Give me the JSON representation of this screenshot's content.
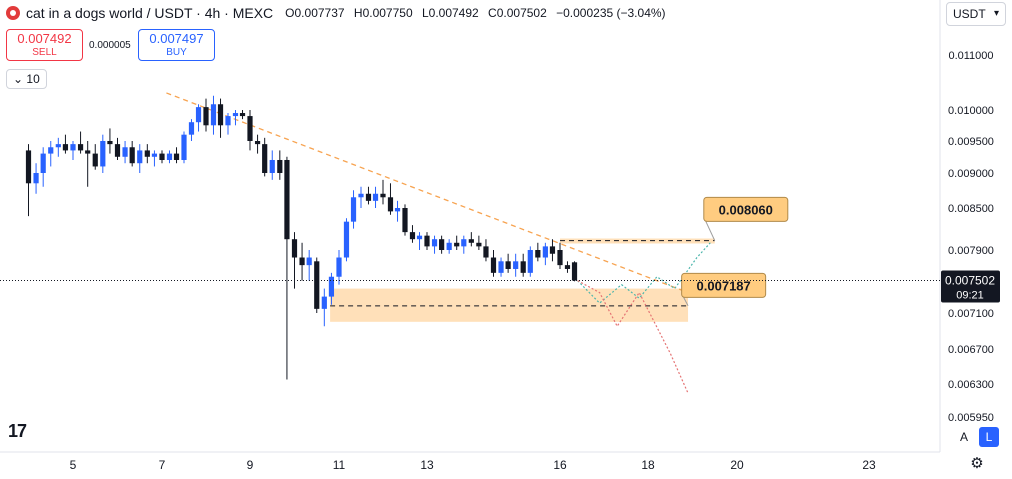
{
  "header": {
    "symbol": "cat in a dogs world / USDT · 4h · MEXC",
    "open": "O0.007737",
    "high": "H0.007750",
    "low": "L0.007492",
    "close": "C0.007502",
    "change": "−0.000235 (−3.04%)"
  },
  "trade": {
    "sell_price": "0.007492",
    "sell_label": "SELL",
    "spread": "0.000005",
    "buy_price": "0.007497",
    "buy_label": "BUY"
  },
  "indicator_count": "10",
  "currency": "USDT",
  "scale_buttons": {
    "auto": "A",
    "log": "L"
  },
  "colors": {
    "up": "#2962ff",
    "down": "#131722",
    "trend": "#f7a350",
    "zone": "#ffd8a8",
    "callout": "#ffcc80"
  },
  "chart_data": {
    "type": "candlestick",
    "timeframe": "4h",
    "y_ticks": [
      "0.011000",
      "0.010000",
      "0.009500",
      "0.009000",
      "0.008500",
      "0.007900",
      "0.007100",
      "0.006700",
      "0.006300",
      "0.005950"
    ],
    "x_ticks": [
      "5",
      "7",
      "9",
      "11",
      "13",
      "16",
      "18",
      "20",
      "23"
    ],
    "last_price": {
      "value": "0.007502",
      "countdown": "09:21"
    },
    "ohlc": [
      {
        "x": 4.0,
        "o": 0.00935,
        "h": 0.00945,
        "l": 0.00838,
        "c": 0.00885
      },
      {
        "x": 4.17,
        "o": 0.00885,
        "h": 0.00915,
        "l": 0.0087,
        "c": 0.009
      },
      {
        "x": 4.33,
        "o": 0.009,
        "h": 0.0094,
        "l": 0.0088,
        "c": 0.0093
      },
      {
        "x": 4.5,
        "o": 0.0093,
        "h": 0.0095,
        "l": 0.0091,
        "c": 0.0094
      },
      {
        "x": 4.67,
        "o": 0.0094,
        "h": 0.00955,
        "l": 0.00925,
        "c": 0.00945
      },
      {
        "x": 4.83,
        "o": 0.00945,
        "h": 0.0096,
        "l": 0.0093,
        "c": 0.00935
      },
      {
        "x": 5.0,
        "o": 0.00935,
        "h": 0.0095,
        "l": 0.0092,
        "c": 0.00945
      },
      {
        "x": 5.17,
        "o": 0.00945,
        "h": 0.00965,
        "l": 0.0093,
        "c": 0.00935
      },
      {
        "x": 5.33,
        "o": 0.00935,
        "h": 0.0095,
        "l": 0.0088,
        "c": 0.0093
      },
      {
        "x": 5.5,
        "o": 0.0093,
        "h": 0.00945,
        "l": 0.00905,
        "c": 0.0091
      },
      {
        "x": 5.67,
        "o": 0.0091,
        "h": 0.0096,
        "l": 0.009,
        "c": 0.0095
      },
      {
        "x": 5.83,
        "o": 0.0095,
        "h": 0.0097,
        "l": 0.0093,
        "c": 0.00945
      },
      {
        "x": 6.0,
        "o": 0.00945,
        "h": 0.00955,
        "l": 0.0092,
        "c": 0.00925
      },
      {
        "x": 6.17,
        "o": 0.00925,
        "h": 0.0095,
        "l": 0.00915,
        "c": 0.0094
      },
      {
        "x": 6.33,
        "o": 0.0094,
        "h": 0.0095,
        "l": 0.0091,
        "c": 0.00915
      },
      {
        "x": 6.5,
        "o": 0.00915,
        "h": 0.00945,
        "l": 0.009,
        "c": 0.00935
      },
      {
        "x": 6.67,
        "o": 0.00935,
        "h": 0.00945,
        "l": 0.00915,
        "c": 0.00925
      },
      {
        "x": 6.83,
        "o": 0.00925,
        "h": 0.00935,
        "l": 0.0091,
        "c": 0.0093
      },
      {
        "x": 7.0,
        "o": 0.0093,
        "h": 0.00935,
        "l": 0.00915,
        "c": 0.0092
      },
      {
        "x": 7.17,
        "o": 0.0092,
        "h": 0.00935,
        "l": 0.00915,
        "c": 0.0093
      },
      {
        "x": 7.33,
        "o": 0.0093,
        "h": 0.0094,
        "l": 0.00915,
        "c": 0.0092
      },
      {
        "x": 7.5,
        "o": 0.0092,
        "h": 0.00965,
        "l": 0.00915,
        "c": 0.0096
      },
      {
        "x": 7.67,
        "o": 0.0096,
        "h": 0.00985,
        "l": 0.0095,
        "c": 0.0098
      },
      {
        "x": 7.83,
        "o": 0.0098,
        "h": 0.0101,
        "l": 0.00965,
        "c": 0.01005
      },
      {
        "x": 8.0,
        "o": 0.01005,
        "h": 0.0102,
        "l": 0.00965,
        "c": 0.00975
      },
      {
        "x": 8.17,
        "o": 0.00975,
        "h": 0.01025,
        "l": 0.0096,
        "c": 0.0101
      },
      {
        "x": 8.33,
        "o": 0.0101,
        "h": 0.0102,
        "l": 0.00955,
        "c": 0.00975
      },
      {
        "x": 8.5,
        "o": 0.00975,
        "h": 0.00995,
        "l": 0.0096,
        "c": 0.0099
      },
      {
        "x": 8.67,
        "o": 0.0099,
        "h": 0.01,
        "l": 0.00975,
        "c": 0.00995
      },
      {
        "x": 8.83,
        "o": 0.00995,
        "h": 0.01,
        "l": 0.00985,
        "c": 0.0099
      },
      {
        "x": 9.0,
        "o": 0.0099,
        "h": 0.01,
        "l": 0.00935,
        "c": 0.0095
      },
      {
        "x": 9.17,
        "o": 0.0095,
        "h": 0.0096,
        "l": 0.0093,
        "c": 0.00945
      },
      {
        "x": 9.33,
        "o": 0.00945,
        "h": 0.00955,
        "l": 0.00895,
        "c": 0.009
      },
      {
        "x": 9.5,
        "o": 0.009,
        "h": 0.00935,
        "l": 0.0089,
        "c": 0.0092
      },
      {
        "x": 9.67,
        "o": 0.0092,
        "h": 0.00935,
        "l": 0.0089,
        "c": 0.009
      },
      {
        "x": 9.83,
        "o": 0.0092,
        "h": 0.00925,
        "l": 0.00635,
        "c": 0.00805
      },
      {
        "x": 10.0,
        "o": 0.00805,
        "h": 0.00815,
        "l": 0.0074,
        "c": 0.0078
      },
      {
        "x": 10.17,
        "o": 0.0078,
        "h": 0.008,
        "l": 0.0075,
        "c": 0.0077
      },
      {
        "x": 10.33,
        "o": 0.0077,
        "h": 0.0079,
        "l": 0.0075,
        "c": 0.0078
      },
      {
        "x": 10.5,
        "o": 0.00775,
        "h": 0.0078,
        "l": 0.0071,
        "c": 0.00715
      },
      {
        "x": 10.67,
        "o": 0.00715,
        "h": 0.0074,
        "l": 0.00695,
        "c": 0.0073
      },
      {
        "x": 10.83,
        "o": 0.0073,
        "h": 0.0076,
        "l": 0.0072,
        "c": 0.00755
      },
      {
        "x": 11.0,
        "o": 0.00755,
        "h": 0.0079,
        "l": 0.00745,
        "c": 0.0078
      },
      {
        "x": 11.17,
        "o": 0.0078,
        "h": 0.00835,
        "l": 0.00775,
        "c": 0.0083
      },
      {
        "x": 11.33,
        "o": 0.0083,
        "h": 0.00875,
        "l": 0.0082,
        "c": 0.00865
      },
      {
        "x": 11.5,
        "o": 0.00865,
        "h": 0.0088,
        "l": 0.0085,
        "c": 0.0087
      },
      {
        "x": 11.67,
        "o": 0.0087,
        "h": 0.0088,
        "l": 0.00855,
        "c": 0.0086
      },
      {
        "x": 11.83,
        "o": 0.0086,
        "h": 0.0088,
        "l": 0.0085,
        "c": 0.0087
      },
      {
        "x": 12.0,
        "o": 0.0087,
        "h": 0.0089,
        "l": 0.00855,
        "c": 0.00865
      },
      {
        "x": 12.17,
        "o": 0.00865,
        "h": 0.00885,
        "l": 0.0084,
        "c": 0.00845
      },
      {
        "x": 12.33,
        "o": 0.00845,
        "h": 0.0086,
        "l": 0.0083,
        "c": 0.0085
      },
      {
        "x": 12.5,
        "o": 0.0085,
        "h": 0.00855,
        "l": 0.0081,
        "c": 0.00815
      },
      {
        "x": 12.67,
        "o": 0.00815,
        "h": 0.00825,
        "l": 0.008,
        "c": 0.00805
      },
      {
        "x": 12.83,
        "o": 0.00805,
        "h": 0.00815,
        "l": 0.0079,
        "c": 0.0081
      },
      {
        "x": 13.0,
        "o": 0.0081,
        "h": 0.00815,
        "l": 0.0079,
        "c": 0.00795
      },
      {
        "x": 13.17,
        "o": 0.00795,
        "h": 0.0081,
        "l": 0.00785,
        "c": 0.00805
      },
      {
        "x": 13.33,
        "o": 0.00805,
        "h": 0.0081,
        "l": 0.00785,
        "c": 0.0079
      },
      {
        "x": 13.5,
        "o": 0.0079,
        "h": 0.00805,
        "l": 0.00785,
        "c": 0.008
      },
      {
        "x": 13.67,
        "o": 0.008,
        "h": 0.0081,
        "l": 0.0079,
        "c": 0.00795
      },
      {
        "x": 13.83,
        "o": 0.00795,
        "h": 0.0081,
        "l": 0.00785,
        "c": 0.00805
      },
      {
        "x": 14.0,
        "o": 0.00805,
        "h": 0.00815,
        "l": 0.00795,
        "c": 0.008
      },
      {
        "x": 14.17,
        "o": 0.008,
        "h": 0.0081,
        "l": 0.0079,
        "c": 0.00795
      },
      {
        "x": 14.33,
        "o": 0.00795,
        "h": 0.00805,
        "l": 0.00775,
        "c": 0.0078
      },
      {
        "x": 14.5,
        "o": 0.0078,
        "h": 0.0079,
        "l": 0.00755,
        "c": 0.0076
      },
      {
        "x": 14.67,
        "o": 0.0076,
        "h": 0.0078,
        "l": 0.00755,
        "c": 0.00775
      },
      {
        "x": 14.83,
        "o": 0.00775,
        "h": 0.00785,
        "l": 0.0076,
        "c": 0.00765
      },
      {
        "x": 15.0,
        "o": 0.00765,
        "h": 0.00785,
        "l": 0.00755,
        "c": 0.00775
      },
      {
        "x": 15.17,
        "o": 0.00775,
        "h": 0.00785,
        "l": 0.00755,
        "c": 0.0076
      },
      {
        "x": 15.33,
        "o": 0.0076,
        "h": 0.00795,
        "l": 0.00755,
        "c": 0.0079
      },
      {
        "x": 15.5,
        "o": 0.0079,
        "h": 0.008,
        "l": 0.00775,
        "c": 0.0078
      },
      {
        "x": 15.67,
        "o": 0.0078,
        "h": 0.008,
        "l": 0.0077,
        "c": 0.00795
      },
      {
        "x": 15.83,
        "o": 0.00795,
        "h": 0.00805,
        "l": 0.00775,
        "c": 0.00785
      },
      {
        "x": 16.0,
        "o": 0.0079,
        "h": 0.008,
        "l": 0.00765,
        "c": 0.0077
      },
      {
        "x": 16.17,
        "o": 0.0077,
        "h": 0.00775,
        "l": 0.0076,
        "c": 0.00765
      },
      {
        "x": 16.33,
        "o": 0.007737,
        "h": 0.00775,
        "l": 0.007492,
        "c": 0.007502
      }
    ],
    "trendline": {
      "x1": 7.1,
      "y1": 0.0103,
      "x2": 18.9,
      "y2": 0.00735
    },
    "zones": [
      {
        "x1": 16.0,
        "x2": 19.5,
        "y1": 0.00799,
        "y2": 0.00806,
        "dashed_y": 0.00803
      },
      {
        "x1": 10.8,
        "x2": 18.9,
        "y1": 0.007,
        "y2": 0.0074,
        "dashed_y": 0.007187
      }
    ],
    "callouts": [
      {
        "label": "0.008060",
        "x": 20.2,
        "y": 0.00848,
        "anchor_x": 19.5,
        "anchor_y": 0.00803
      },
      {
        "label": "0.007187",
        "x": 19.7,
        "y": 0.00744,
        "anchor_x": 18.9,
        "anchor_y": 0.007187
      }
    ],
    "scenario_paths": [
      {
        "color": "#4db6ac",
        "points": [
          [
            16.4,
            0.0075
          ],
          [
            16.9,
            0.00722
          ],
          [
            17.4,
            0.00745
          ],
          [
            17.8,
            0.00728
          ],
          [
            18.2,
            0.00755
          ],
          [
            18.6,
            0.0074
          ],
          [
            19.1,
            0.0078
          ],
          [
            19.4,
            0.008
          ]
        ]
      },
      {
        "color": "#e57373",
        "points": [
          [
            16.4,
            0.0075
          ],
          [
            16.9,
            0.00735
          ],
          [
            17.3,
            0.00695
          ],
          [
            17.8,
            0.00735
          ],
          [
            18.5,
            0.00665
          ],
          [
            18.9,
            0.0062
          ]
        ]
      }
    ]
  }
}
